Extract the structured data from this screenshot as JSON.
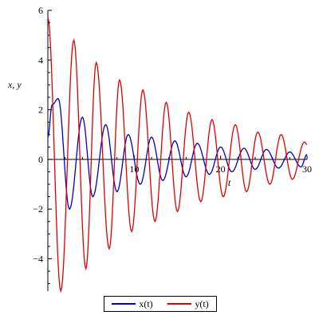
{
  "chart_data": {
    "type": "line",
    "title": "",
    "xlabel": "t",
    "ylabel": "x, y",
    "xlim": [
      0,
      30
    ],
    "ylim": [
      -5.3,
      6
    ],
    "x_ticks": [
      10,
      20,
      30
    ],
    "y_ticks": [
      -4,
      -2,
      0,
      2,
      4,
      6
    ],
    "legend": "bottom",
    "grid": false,
    "series": [
      {
        "name": "x(t)",
        "color": "#0000c8",
        "x": [
          0.0,
          0.5,
          1.2,
          2.5,
          4.0,
          5.2,
          6.7,
          8.0,
          9.3,
          10.7,
          12.0,
          13.3,
          14.7,
          16.0,
          17.3,
          18.7,
          20.0,
          21.3,
          22.7,
          24.0,
          25.3,
          26.7,
          28.0,
          29.3,
          30.0
        ],
        "values": [
          0.9,
          2.2,
          2.45,
          -2.0,
          1.7,
          -1.5,
          1.4,
          -1.3,
          1.0,
          -1.0,
          0.9,
          -0.85,
          0.75,
          -0.7,
          0.65,
          -0.6,
          0.5,
          -0.5,
          0.45,
          -0.4,
          0.4,
          -0.35,
          0.3,
          -0.3,
          0.2
        ]
      },
      {
        "name": "y(t)",
        "color": "#e00000",
        "x": [
          0.0,
          1.5,
          3.0,
          4.4,
          5.6,
          7.1,
          8.3,
          9.7,
          11.0,
          12.4,
          13.7,
          15.0,
          16.3,
          17.7,
          19.0,
          20.3,
          21.7,
          23.0,
          24.3,
          25.7,
          27.0,
          28.3,
          29.7,
          30.0
        ],
        "values": [
          5.7,
          -5.3,
          4.8,
          -4.4,
          3.9,
          -3.6,
          3.2,
          -2.9,
          2.8,
          -2.5,
          2.3,
          -2.1,
          1.9,
          -1.7,
          1.6,
          -1.5,
          1.4,
          -1.3,
          1.1,
          -1.0,
          1.0,
          -0.8,
          0.7,
          0.6
        ]
      }
    ]
  }
}
